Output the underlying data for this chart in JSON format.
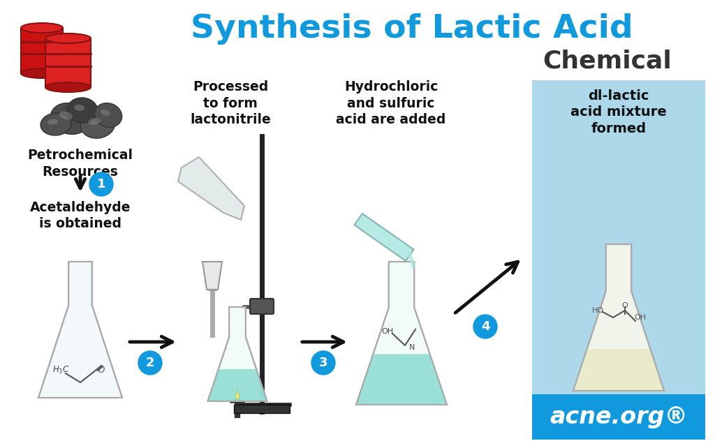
{
  "title_main": "Synthesis of Lactic Acid",
  "title_sub": "Chemical",
  "title_main_color": "#1199dd",
  "title_sub_color": "#333333",
  "bg_color": "#ffffff",
  "blue_box_color": "#add8ea",
  "step_labels": [
    "Petrochemical\nResources",
    "Acetaldehyde\nis obtained",
    "Processed\nto form\nlactonitrile",
    "Hydrochloric\nand sulfuric\nacid are added",
    "dl-lactic\nacid mixture\nformed"
  ],
  "step_numbers": [
    "1",
    "2",
    "3",
    "4"
  ],
  "circle_color": "#1199dd",
  "circle_text_color": "#ffffff",
  "arrow_color": "#111111",
  "text_color": "#111111",
  "acneorg_bg": "#1199dd",
  "acneorg_text": "acne.org®",
  "acneorg_text_color": "#ffffff",
  "flask1_liquid": null,
  "flask2_liquid": "#7dd8cc",
  "flask3_liquid": "#7dd8cc",
  "flask4_liquid": "#e8e8c0"
}
